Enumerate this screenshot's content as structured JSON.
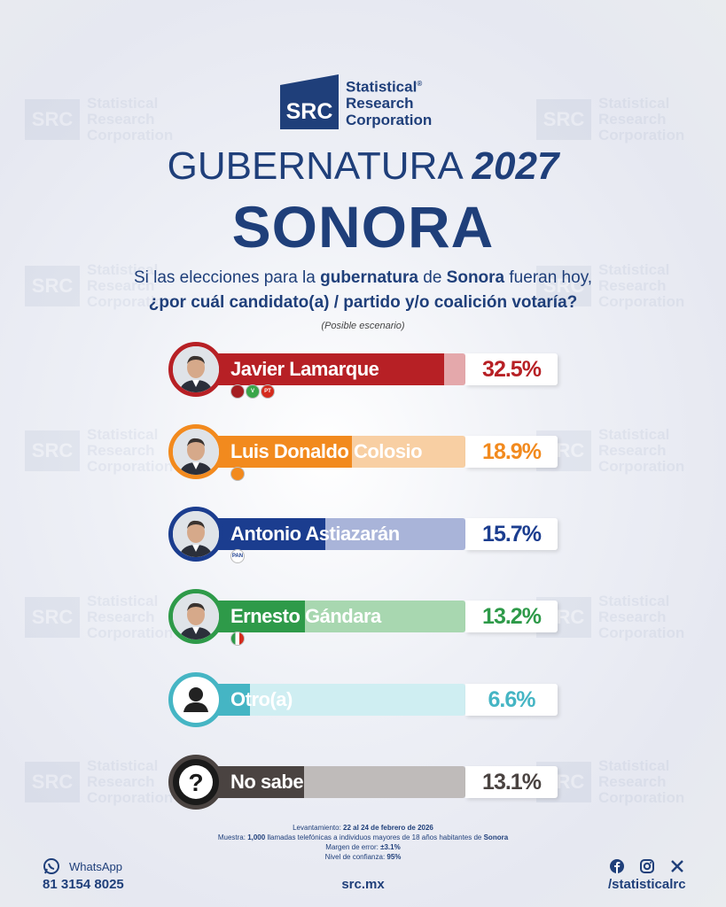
{
  "brand": {
    "abbr": "SRC",
    "line1": "Statistical",
    "line2": "Research",
    "line3": "Corporation",
    "reg": "®"
  },
  "title": {
    "prefix": "GUBERNATURA",
    "year": "2027",
    "state": "SONORA"
  },
  "question": {
    "line1_a": "Si las elecciones para la ",
    "line1_b": "gubernatura",
    "line1_c": " de ",
    "line1_d": "Sonora",
    "line1_e": " fueran hoy,",
    "line2": "¿por cuál candidato(a) / partido y/o coalición votaría?"
  },
  "scenario_note": "(Posible escenario)",
  "chart_data": {
    "type": "bar",
    "orientation": "horizontal",
    "categories": [
      "Javier Lamarque",
      "Luis Donaldo Colosio",
      "Antonio Astiazarán",
      "Ernesto Gándara",
      "Otro(a)",
      "No sabe"
    ],
    "values": [
      32.5,
      18.9,
      15.7,
      13.2,
      6.6,
      13.1
    ],
    "value_labels": [
      "32.5%",
      "18.9%",
      "15.7%",
      "13.2%",
      "6.6%",
      "13.1%"
    ],
    "unit": "%",
    "colors": [
      "#b72025",
      "#f28a1e",
      "#1b3d8f",
      "#2e9a49",
      "#45b5c4",
      "#4a4341"
    ],
    "light_colors": [
      "#e4a8ab",
      "#f8cfa3",
      "#a9b4d9",
      "#a8d7b0",
      "#cfeef2",
      "#bfbbba"
    ],
    "pct_colors": [
      "#b72025",
      "#f28a1e",
      "#1b3d8f",
      "#2e9a49",
      "#45b5c4",
      "#4a4341"
    ],
    "parties": [
      [
        "morena",
        "verde",
        "PT"
      ],
      [
        "MC"
      ],
      [
        "PAN"
      ],
      [
        "PRI"
      ],
      [],
      []
    ],
    "max_value": 32.5
  },
  "footnote": {
    "l1_a": "Levantamiento: ",
    "l1_b": "22 al 24 de febrero de 2026",
    "l2_a": "Muestra: ",
    "l2_b": "1,000",
    "l2_c": " llamadas telefónicas a individuos mayores de 18 años habitantes de ",
    "l2_d": "Sonora",
    "l3_a": "Margen de error: ",
    "l3_b": "±3.1%",
    "l4_a": "Nivel de confianza: ",
    "l4_b": "95%"
  },
  "contact": {
    "whatsapp_label": "WhatsApp",
    "phone": "81 3154 8025",
    "website": "src.mx",
    "handle": "/statisticalrc"
  },
  "icons": {
    "whatsapp": "whatsapp-icon",
    "facebook": "facebook-icon",
    "instagram": "instagram-icon",
    "x": "x-icon"
  }
}
